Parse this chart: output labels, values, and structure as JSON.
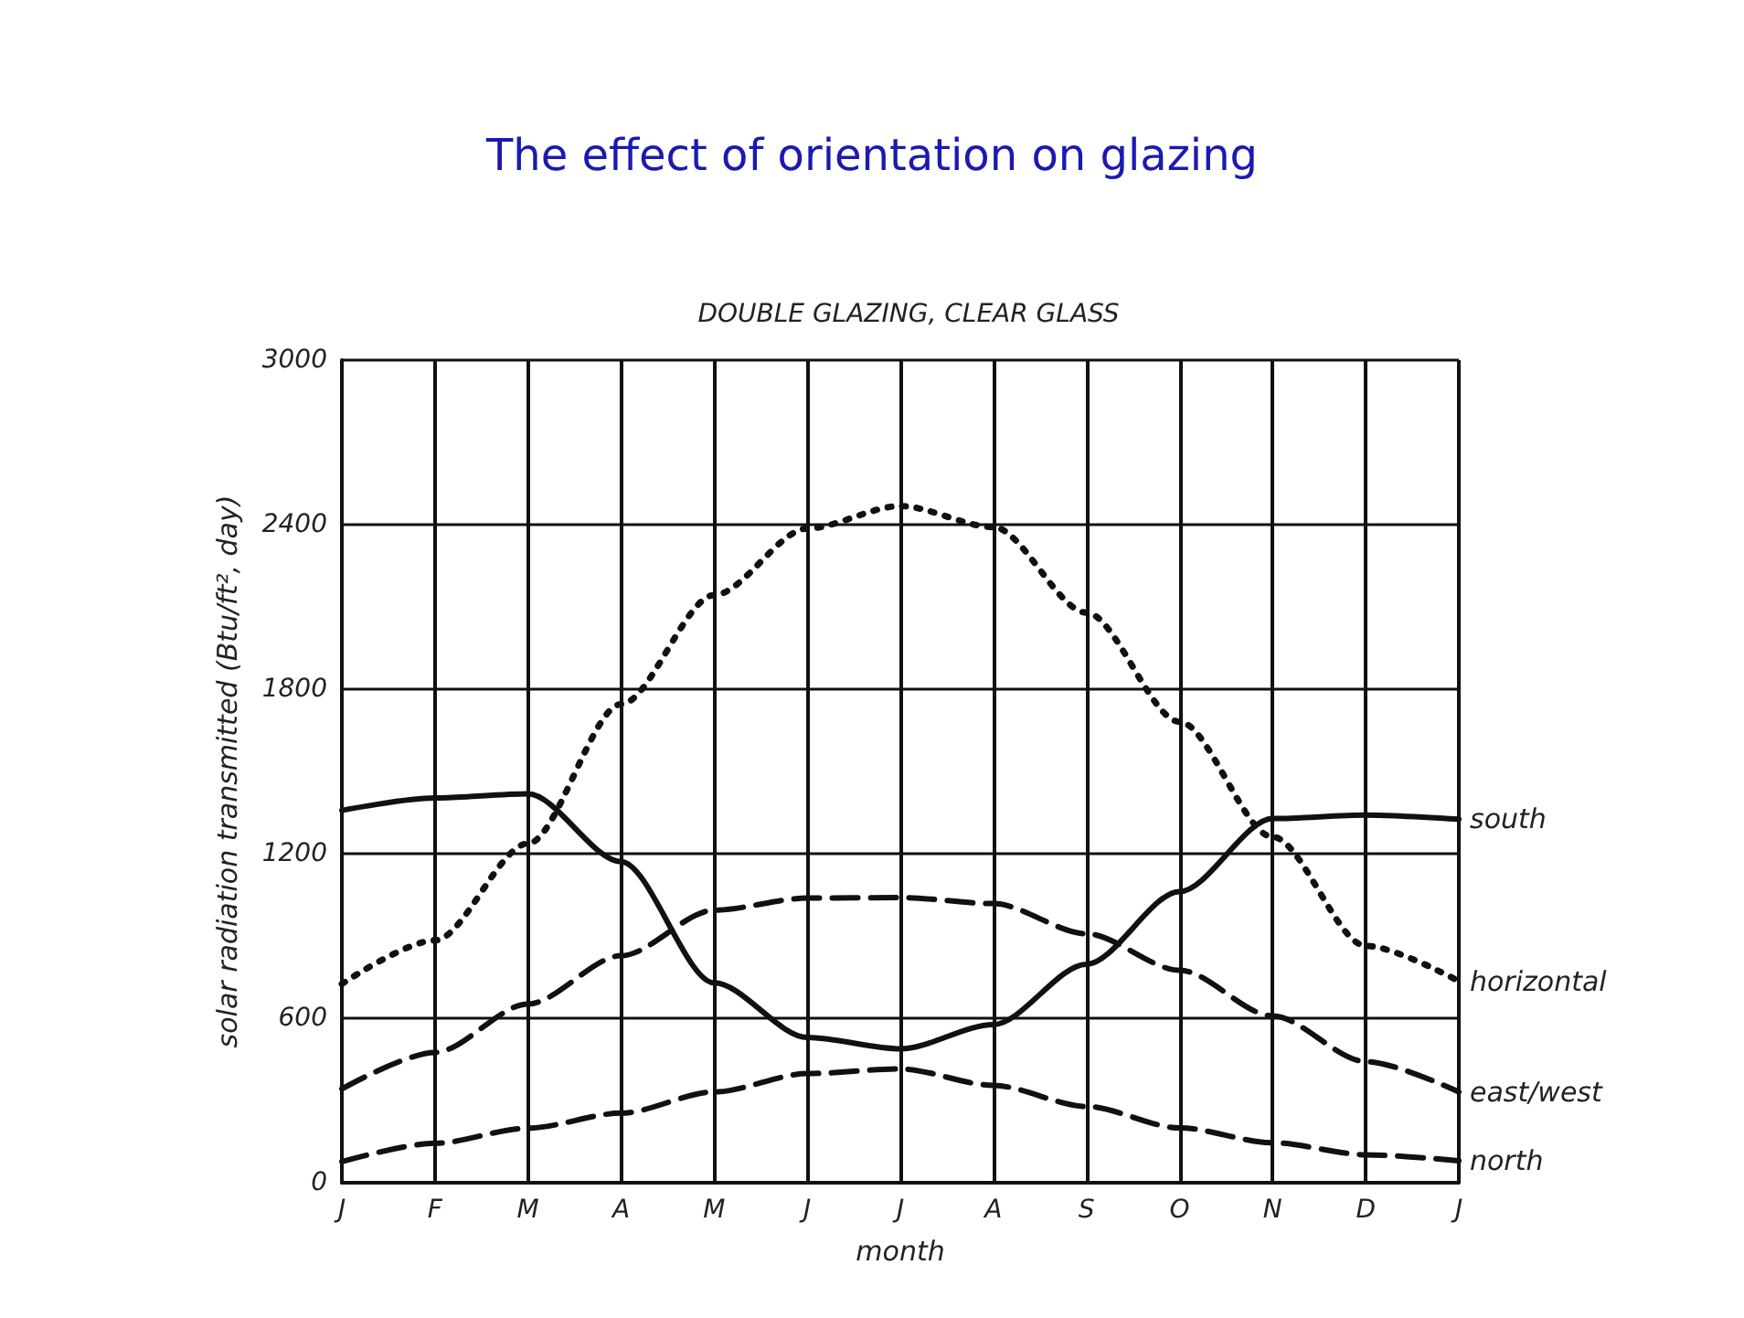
{
  "chart_data": {
    "type": "line",
    "title": "The effect of orientation on glazing",
    "subtitle": "DOUBLE GLAZING, CLEAR GLASS",
    "xlabel": "month",
    "ylabel": "solar radiation transmitted (Btu/ft², day)",
    "categories": [
      "J",
      "F",
      "M",
      "A",
      "M",
      "J",
      "J",
      "A",
      "S",
      "O",
      "N",
      "D",
      "J"
    ],
    "ylim": [
      0,
      3000
    ],
    "yticks": [
      0,
      600,
      1200,
      1800,
      2400,
      3000
    ],
    "grid": true,
    "legend": false,
    "marker": "none",
    "series": [
      {
        "name": "south",
        "color": "#111111",
        "line_style": "solid",
        "values": [
          1358,
          1403,
          1418,
          1171,
          729,
          530,
          488,
          577,
          797,
          1062,
          1328,
          1341,
          1326
        ]
      },
      {
        "name": "horizontal",
        "color": "#111111",
        "line_style": "dotted",
        "values": [
          725,
          884,
          1237,
          1745,
          2143,
          2386,
          2468,
          2391,
          2079,
          1681,
          1261,
          864,
          735
        ]
      },
      {
        "name": "east/west",
        "color": "#111111",
        "line_style": "dashed",
        "values": [
          342,
          475,
          652,
          828,
          994,
          1038,
          1040,
          1018,
          908,
          775,
          608,
          442,
          331
        ]
      },
      {
        "name": "north",
        "color": "#111111",
        "line_style": "dashed",
        "values": [
          77,
          144,
          199,
          254,
          331,
          398,
          415,
          355,
          278,
          200,
          146,
          102,
          80
        ]
      }
    ]
  }
}
